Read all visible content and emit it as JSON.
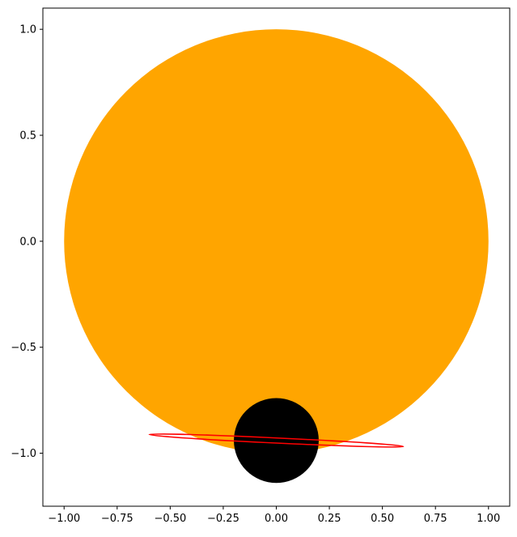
{
  "chart_data": {
    "type": "scatter",
    "title": "",
    "xlabel": "",
    "ylabel": "",
    "xlim": [
      -1.1,
      1.1
    ],
    "ylim": [
      -1.25,
      1.1
    ],
    "x_ticks": [
      -1.0,
      -0.75,
      -0.5,
      -0.25,
      0.0,
      0.25,
      0.5,
      0.75,
      1.0
    ],
    "x_tick_labels": [
      "−1.00",
      "−0.75",
      "−0.50",
      "−0.25",
      "0.00",
      "0.25",
      "0.50",
      "0.75",
      "1.00"
    ],
    "y_ticks": [
      1.0,
      0.5,
      0.0,
      -0.5,
      -1.0
    ],
    "y_tick_labels": [
      "1.0",
      "0.5",
      "0.0",
      "−0.5",
      "−1.0"
    ],
    "grid": false,
    "shapes": [
      {
        "kind": "circle",
        "name": "star",
        "cx": 0.0,
        "cy": 0.0,
        "r": 1.0,
        "color": "#ffa500"
      },
      {
        "kind": "circle",
        "name": "planet",
        "cx": 0.0,
        "cy": -0.94,
        "r": 0.2,
        "color": "#000000"
      },
      {
        "kind": "ellipse",
        "name": "ring",
        "cx": 0.0,
        "cy": -0.94,
        "rx": 0.6,
        "ry": 0.012,
        "rotation_deg": -2.7,
        "stroke": "#ff0000"
      }
    ]
  }
}
